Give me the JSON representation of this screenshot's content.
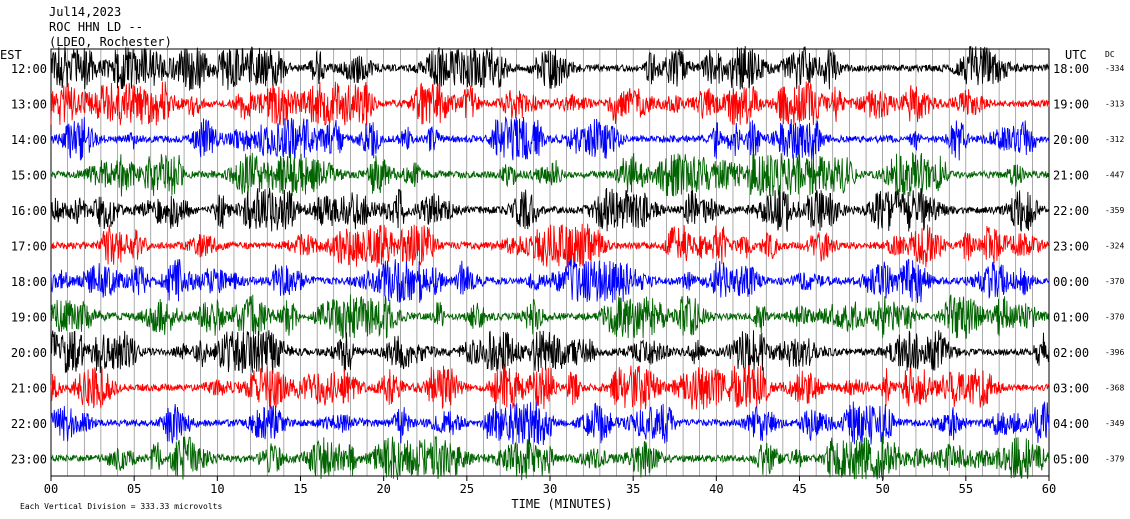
{
  "header": {
    "date": "Jul14,2023",
    "station": "ROC HHN LD --",
    "network": "(LDEO, Rochester)"
  },
  "chart_data": {
    "type": "line",
    "title": "Jul14,2023 ROC HHN LD -- (LDEO, Rochester)",
    "xlabel": "TIME (MINUTES)",
    "x_ticks": [
      "00",
      "05",
      "10",
      "15",
      "20",
      "25",
      "30",
      "35",
      "40",
      "45",
      "50",
      "55",
      "60"
    ],
    "xlim": [
      0,
      60
    ],
    "left_axis_title": "EST",
    "right_axis_title": "UTC",
    "dc_title": "DC",
    "rows": [
      {
        "est": "12:00",
        "utc": "18:00",
        "dc": "-334",
        "color": "#000000"
      },
      {
        "est": "13:00",
        "utc": "19:00",
        "dc": "-313",
        "color": "#ff0000"
      },
      {
        "est": "14:00",
        "utc": "20:00",
        "dc": "-312",
        "color": "#0000ff"
      },
      {
        "est": "15:00",
        "utc": "21:00",
        "dc": "-447",
        "color": "#006400"
      },
      {
        "est": "16:00",
        "utc": "22:00",
        "dc": "-359",
        "color": "#000000"
      },
      {
        "est": "17:00",
        "utc": "23:00",
        "dc": "-324",
        "color": "#ff0000"
      },
      {
        "est": "18:00",
        "utc": "00:00",
        "dc": "-370",
        "color": "#0000ff"
      },
      {
        "est": "19:00",
        "utc": "01:00",
        "dc": "-370",
        "color": "#006400"
      },
      {
        "est": "20:00",
        "utc": "02:00",
        "dc": "-396",
        "color": "#000000"
      },
      {
        "est": "21:00",
        "utc": "03:00",
        "dc": "-368",
        "color": "#ff0000"
      },
      {
        "est": "22:00",
        "utc": "04:00",
        "dc": "-349",
        "color": "#0000ff"
      },
      {
        "est": "23:00",
        "utc": "05:00",
        "dc": "-379",
        "color": "#006400"
      }
    ],
    "footnote": "Each Vertical Division =  333.33 microvolts",
    "grid": "vertical lines every minute"
  }
}
